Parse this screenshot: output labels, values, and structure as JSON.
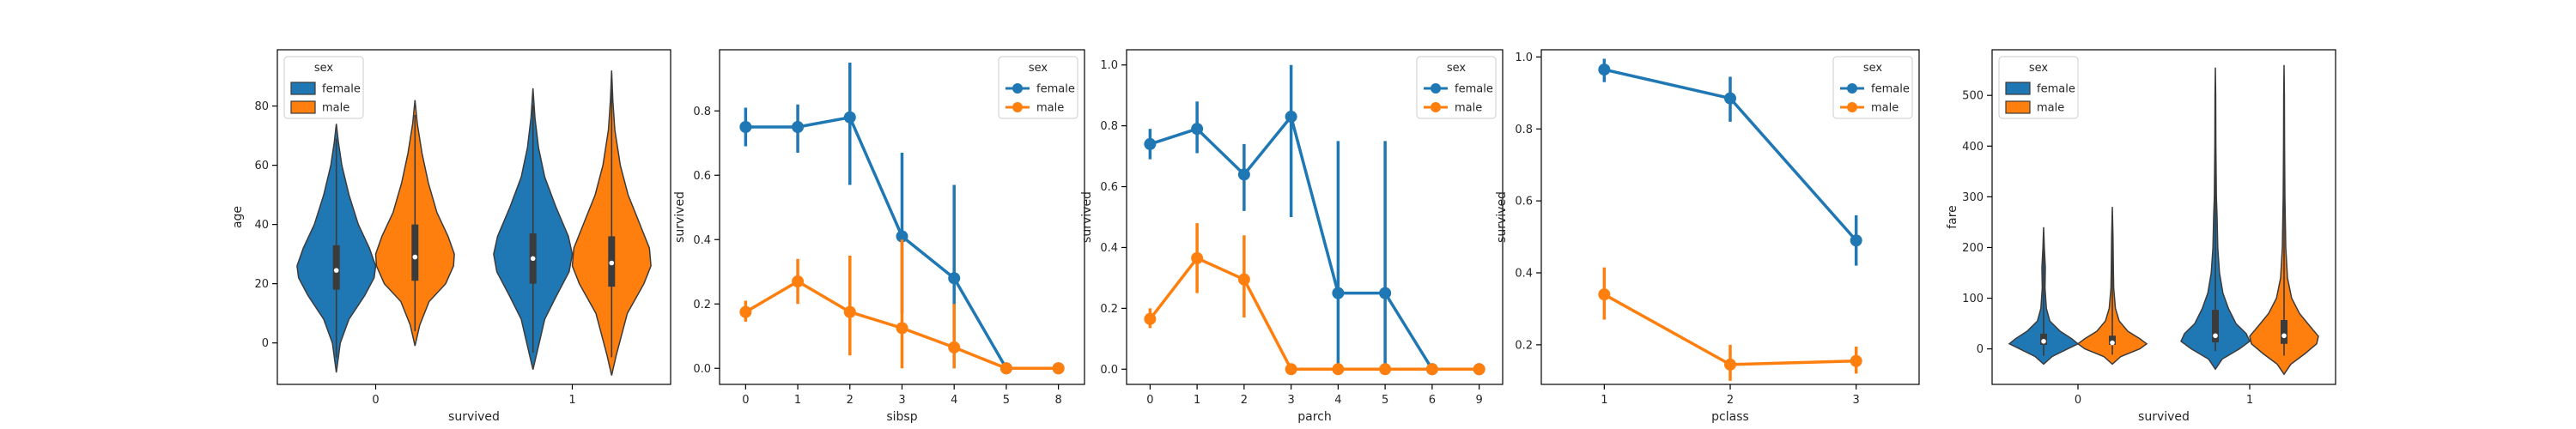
{
  "colors": {
    "female": "#1f77b4",
    "male": "#ff7f0e"
  },
  "chart_data": [
    {
      "type": "violin",
      "xlabel": "survived",
      "ylabel": "age",
      "categories": [
        "0",
        "1"
      ],
      "ylim": [
        -14,
        99
      ],
      "yticks": [
        0,
        20,
        40,
        60,
        80
      ],
      "legend": {
        "title": "sex",
        "position": "top-left",
        "entries": [
          "female",
          "male"
        ]
      },
      "series": [
        {
          "name": "female",
          "groups": [
            {
              "min": -10,
              "max": 74,
              "q1": 18,
              "median": 24.5,
              "q3": 33,
              "profile": [
                [
                  -10,
                  0
                ],
                [
                  0,
                  0.1
                ],
                [
                  8,
                  0.32
                ],
                [
                  16,
                  0.72
                ],
                [
                  22,
                  0.96
                ],
                [
                  26,
                  1.0
                ],
                [
                  32,
                  0.84
                ],
                [
                  40,
                  0.56
                ],
                [
                  50,
                  0.32
                ],
                [
                  60,
                  0.14
                ],
                [
                  68,
                  0.05
                ],
                [
                  74,
                  0
                ]
              ]
            },
            {
              "min": -9,
              "max": 86,
              "q1": 20,
              "median": 28.5,
              "q3": 37,
              "profile": [
                [
                  -9,
                  0
                ],
                [
                  0,
                  0.16
                ],
                [
                  8,
                  0.3
                ],
                [
                  16,
                  0.6
                ],
                [
                  24,
                  0.92
                ],
                [
                  30,
                  1.0
                ],
                [
                  36,
                  0.9
                ],
                [
                  46,
                  0.58
                ],
                [
                  56,
                  0.3
                ],
                [
                  66,
                  0.14
                ],
                [
                  76,
                  0.05
                ],
                [
                  86,
                  0
                ]
              ]
            }
          ]
        },
        {
          "name": "male",
          "groups": [
            {
              "min": -1,
              "max": 82,
              "q1": 21,
              "median": 29,
              "q3": 40,
              "profile": [
                [
                  -1,
                  0
                ],
                [
                  6,
                  0.12
                ],
                [
                  14,
                  0.36
                ],
                [
                  20,
                  0.78
                ],
                [
                  26,
                  0.98
                ],
                [
                  30,
                  1.0
                ],
                [
                  36,
                  0.84
                ],
                [
                  44,
                  0.56
                ],
                [
                  54,
                  0.34
                ],
                [
                  64,
                  0.18
                ],
                [
                  74,
                  0.06
                ],
                [
                  82,
                  0
                ]
              ]
            },
            {
              "min": -11,
              "max": 92,
              "q1": 19,
              "median": 27,
              "q3": 36,
              "profile": [
                [
                  -11,
                  0
                ],
                [
                  -4,
                  0.12
                ],
                [
                  2,
                  0.24
                ],
                [
                  10,
                  0.4
                ],
                [
                  20,
                  0.82
                ],
                [
                  26,
                  1.0
                ],
                [
                  32,
                  0.96
                ],
                [
                  40,
                  0.72
                ],
                [
                  50,
                  0.42
                ],
                [
                  60,
                  0.22
                ],
                [
                  72,
                  0.08
                ],
                [
                  82,
                  0.03
                ],
                [
                  92,
                  0
                ]
              ]
            }
          ]
        }
      ]
    },
    {
      "type": "point",
      "xlabel": "sibsp",
      "ylabel": "survived",
      "categories": [
        "0",
        "1",
        "2",
        "3",
        "4",
        "5",
        "8"
      ],
      "ylim": [
        -0.05,
        0.99
      ],
      "yticks": [
        0.0,
        0.2,
        0.4,
        0.6,
        0.8
      ],
      "yformat": 1,
      "legend": {
        "title": "sex",
        "position": "top-right",
        "entries": [
          "female",
          "male"
        ]
      },
      "series": [
        {
          "name": "female",
          "values": [
            0.75,
            0.75,
            0.78,
            0.41,
            0.28,
            0.0,
            0.0
          ],
          "ci": [
            [
              0.69,
              0.81
            ],
            [
              0.67,
              0.82
            ],
            [
              0.57,
              0.95
            ],
            [
              0.17,
              0.67
            ],
            [
              0.0,
              0.57
            ],
            [
              0.0,
              0.0
            ],
            [
              0.0,
              0.0
            ]
          ]
        },
        {
          "name": "male",
          "values": [
            0.175,
            0.27,
            0.175,
            0.125,
            0.065,
            0.0,
            0.0
          ],
          "ci": [
            [
              0.145,
              0.21
            ],
            [
              0.2,
              0.34
            ],
            [
              0.04,
              0.35
            ],
            [
              0.0,
              0.4
            ],
            [
              0.0,
              0.2
            ],
            [
              0.0,
              0.0
            ],
            [
              0.0,
              0.0
            ]
          ]
        }
      ]
    },
    {
      "type": "point",
      "xlabel": "parch",
      "ylabel": "survived",
      "categories": [
        "0",
        "1",
        "2",
        "3",
        "4",
        "5",
        "6",
        "9"
      ],
      "ylim": [
        -0.05,
        1.05
      ],
      "yticks": [
        0.0,
        0.2,
        0.4,
        0.6,
        0.8,
        1.0
      ],
      "yformat": 1,
      "legend": {
        "title": "sex",
        "position": "top-right",
        "entries": [
          "female",
          "male"
        ]
      },
      "series": [
        {
          "name": "female",
          "values": [
            0.74,
            0.79,
            0.64,
            0.83,
            0.25,
            0.25,
            0.0,
            0.0
          ],
          "ci": [
            [
              0.69,
              0.79
            ],
            [
              0.71,
              0.88
            ],
            [
              0.52,
              0.74
            ],
            [
              0.5,
              1.0
            ],
            [
              0.0,
              0.75
            ],
            [
              0.0,
              0.75
            ],
            [
              0.0,
              0.0
            ],
            [
              0.0,
              0.0
            ]
          ]
        },
        {
          "name": "male",
          "values": [
            0.165,
            0.365,
            0.295,
            0.0,
            0.0,
            0.0,
            0.0,
            0.0
          ],
          "ci": [
            [
              0.135,
              0.2
            ],
            [
              0.25,
              0.48
            ],
            [
              0.17,
              0.44
            ],
            [
              0.0,
              0.0
            ],
            [
              0.0,
              0.0
            ],
            [
              0.0,
              0.0
            ],
            [
              0.0,
              0.0
            ],
            [
              0.0,
              0.0
            ]
          ]
        }
      ]
    },
    {
      "type": "point",
      "xlabel": "pclass",
      "ylabel": "survived",
      "categories": [
        "1",
        "2",
        "3"
      ],
      "ylim": [
        0.09,
        1.02
      ],
      "yticks": [
        0.2,
        0.4,
        0.6,
        0.8,
        1.0
      ],
      "yformat": 1,
      "legend": {
        "title": "sex",
        "position": "top-right",
        "entries": [
          "female",
          "male"
        ]
      },
      "series": [
        {
          "name": "female",
          "values": [
            0.965,
            0.885,
            0.49
          ],
          "ci": [
            [
              0.93,
              0.995
            ],
            [
              0.82,
              0.945
            ],
            [
              0.42,
              0.56
            ]
          ]
        },
        {
          "name": "male",
          "values": [
            0.34,
            0.145,
            0.155
          ],
          "ci": [
            [
              0.27,
              0.415
            ],
            [
              0.1,
              0.2
            ],
            [
              0.12,
              0.195
            ]
          ]
        }
      ]
    },
    {
      "type": "violin",
      "xlabel": "survived",
      "ylabel": "fare",
      "categories": [
        "0",
        "1"
      ],
      "ylim": [
        -70,
        590
      ],
      "yticks": [
        0,
        100,
        200,
        300,
        400,
        500
      ],
      "legend": {
        "title": "sex",
        "position": "top-left",
        "entries": [
          "female",
          "male"
        ]
      },
      "series": [
        {
          "name": "female",
          "groups": [
            {
              "min": -30,
              "max": 240,
              "q1": 8,
              "median": 15,
              "q3": 30,
              "profile": [
                [
                  -30,
                  0
                ],
                [
                  -15,
                  0.25
                ],
                [
                  0,
                  0.7
                ],
                [
                  10,
                  1.0
                ],
                [
                  20,
                  0.82
                ],
                [
                  35,
                  0.48
                ],
                [
                  55,
                  0.18
                ],
                [
                  80,
                  0.08
                ],
                [
                  120,
                  0.04
                ],
                [
                  160,
                  0.05
                ],
                [
                  200,
                  0.02
                ],
                [
                  240,
                  0
                ]
              ]
            },
            {
              "min": -40,
              "max": 555,
              "q1": 13,
              "median": 26,
              "q3": 77,
              "profile": [
                [
                  -40,
                  0
                ],
                [
                  -20,
                  0.2
                ],
                [
                  0,
                  0.7
                ],
                [
                  15,
                  1.0
                ],
                [
                  30,
                  0.9
                ],
                [
                  50,
                  0.6
                ],
                [
                  80,
                  0.38
                ],
                [
                  110,
                  0.22
                ],
                [
                  150,
                  0.12
                ],
                [
                  200,
                  0.07
                ],
                [
                  260,
                  0.05
                ],
                [
                  300,
                  0.03
                ],
                [
                  400,
                  0.015
                ],
                [
                  500,
                  0.01
                ],
                [
                  555,
                  0
                ]
              ]
            }
          ]
        },
        {
          "name": "male",
          "groups": [
            {
              "min": -30,
              "max": 280,
              "q1": 8,
              "median": 12,
              "q3": 26,
              "profile": [
                [
                  -30,
                  0
                ],
                [
                  -15,
                  0.25
                ],
                [
                  0,
                  0.8
                ],
                [
                  10,
                  1.0
                ],
                [
                  20,
                  0.8
                ],
                [
                  35,
                  0.45
                ],
                [
                  55,
                  0.2
                ],
                [
                  80,
                  0.09
                ],
                [
                  120,
                  0.04
                ],
                [
                  160,
                  0.03
                ],
                [
                  220,
                  0.02
                ],
                [
                  280,
                  0
                ]
              ]
            },
            {
              "min": -50,
              "max": 560,
              "q1": 10,
              "median": 26,
              "q3": 57,
              "profile": [
                [
                  -50,
                  0
                ],
                [
                  -30,
                  0.2
                ],
                [
                  -10,
                  0.6
                ],
                [
                  10,
                  0.95
                ],
                [
                  25,
                  1.0
                ],
                [
                  45,
                  0.75
                ],
                [
                  70,
                  0.45
                ],
                [
                  100,
                  0.22
                ],
                [
                  140,
                  0.1
                ],
                [
                  200,
                  0.05
                ],
                [
                  300,
                  0.025
                ],
                [
                  400,
                  0.015
                ],
                [
                  500,
                  0.01
                ],
                [
                  560,
                  0
                ]
              ]
            }
          ]
        }
      ]
    }
  ]
}
